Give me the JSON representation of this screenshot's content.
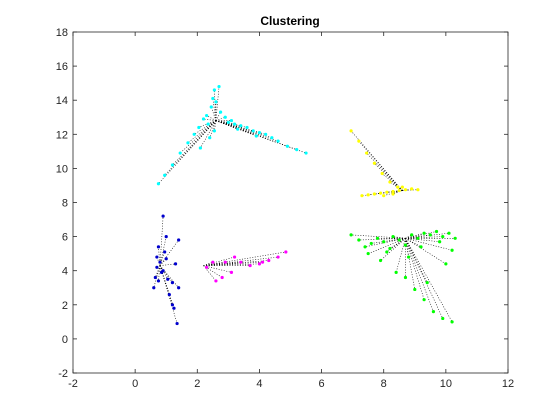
{
  "chart_data": {
    "type": "scatter",
    "title": "Clustering",
    "xlabel": "",
    "ylabel": "",
    "xlim": [
      -2,
      12
    ],
    "ylim": [
      -2,
      18
    ],
    "xticks": [
      -2,
      0,
      2,
      4,
      6,
      8,
      10,
      12
    ],
    "yticks": [
      -2,
      0,
      2,
      4,
      6,
      8,
      10,
      12,
      14,
      16,
      18
    ],
    "grid": false,
    "legend": "none",
    "link_style": {
      "color": "#000000",
      "dash": "dotted"
    },
    "series": [
      {
        "color": "#00ffff",
        "points": [
          [
            0.75,
            9.1
          ],
          [
            0.95,
            9.6
          ],
          [
            1.2,
            10.2
          ],
          [
            1.45,
            10.9
          ],
          [
            1.7,
            11.5
          ],
          [
            1.9,
            12.0
          ],
          [
            2.05,
            12.4
          ],
          [
            2.1,
            11.2
          ],
          [
            2.2,
            12.9
          ],
          [
            2.3,
            13.1
          ],
          [
            2.35,
            12.6
          ],
          [
            2.45,
            13.6
          ],
          [
            2.5,
            14.1
          ],
          [
            2.55,
            14.6
          ],
          [
            2.6,
            13.9
          ],
          [
            2.7,
            14.8
          ],
          [
            2.75,
            13.3
          ],
          [
            2.4,
            11.8
          ],
          [
            2.9,
            13.0
          ],
          [
            3.0,
            12.7
          ],
          [
            3.1,
            12.8
          ],
          [
            3.2,
            12.6
          ],
          [
            3.4,
            12.5
          ],
          [
            3.6,
            12.4
          ],
          [
            3.8,
            12.2
          ],
          [
            4.0,
            12.1
          ],
          [
            4.2,
            12.0
          ],
          [
            4.4,
            11.8
          ],
          [
            4.6,
            11.6
          ],
          [
            4.9,
            11.3
          ],
          [
            5.2,
            11.1
          ],
          [
            5.5,
            10.9
          ],
          [
            2.55,
            12.2
          ],
          [
            3.3,
            12.3
          ],
          [
            3.9,
            11.9
          ]
        ],
        "center": [
          2.6,
          12.8
        ]
      },
      {
        "color": "#ffff00",
        "points": [
          [
            6.95,
            12.2
          ],
          [
            7.2,
            11.6
          ],
          [
            7.45,
            10.9
          ],
          [
            7.7,
            10.3
          ],
          [
            7.95,
            9.7
          ],
          [
            8.2,
            9.2
          ],
          [
            8.45,
            8.9
          ],
          [
            7.3,
            8.4
          ],
          [
            7.5,
            8.45
          ],
          [
            7.7,
            8.5
          ],
          [
            7.9,
            8.55
          ],
          [
            8.1,
            8.6
          ],
          [
            8.3,
            8.65
          ],
          [
            8.5,
            8.7
          ],
          [
            8.7,
            8.75
          ],
          [
            8.9,
            8.8
          ],
          [
            9.1,
            8.75
          ],
          [
            8.6,
            8.9
          ],
          [
            8.0,
            8.4
          ],
          [
            8.3,
            8.5
          ]
        ],
        "center": [
          8.6,
          8.7
        ]
      },
      {
        "color": "#00ff00",
        "points": [
          [
            6.95,
            6.1
          ],
          [
            7.2,
            5.8
          ],
          [
            7.4,
            5.4
          ],
          [
            7.6,
            5.6
          ],
          [
            7.8,
            5.9
          ],
          [
            8.0,
            5.7
          ],
          [
            8.2,
            5.3
          ],
          [
            8.3,
            6.0
          ],
          [
            8.5,
            5.8
          ],
          [
            8.7,
            5.5
          ],
          [
            8.9,
            6.1
          ],
          [
            9.1,
            5.9
          ],
          [
            9.3,
            6.2
          ],
          [
            9.5,
            6.1
          ],
          [
            9.7,
            6.3
          ],
          [
            9.9,
            6.0
          ],
          [
            10.1,
            6.2
          ],
          [
            10.3,
            5.9
          ],
          [
            7.9,
            4.6
          ],
          [
            8.4,
            3.9
          ],
          [
            8.7,
            3.6
          ],
          [
            9.0,
            2.9
          ],
          [
            9.3,
            2.3
          ],
          [
            9.6,
            1.6
          ],
          [
            9.9,
            1.2
          ],
          [
            10.2,
            1.0
          ],
          [
            8.1,
            5.1
          ],
          [
            9.2,
            5.4
          ],
          [
            9.8,
            5.7
          ],
          [
            10.0,
            4.4
          ],
          [
            10.2,
            5.2
          ],
          [
            8.8,
            4.8
          ],
          [
            7.5,
            5.0
          ],
          [
            9.4,
            3.3
          ]
        ],
        "center": [
          8.7,
          5.9
        ]
      },
      {
        "color": "#0000cd",
        "points": [
          [
            0.6,
            3.0
          ],
          [
            0.65,
            3.6
          ],
          [
            0.7,
            4.2
          ],
          [
            0.7,
            4.8
          ],
          [
            0.75,
            5.4
          ],
          [
            0.8,
            4.5
          ],
          [
            0.85,
            3.9
          ],
          [
            0.9,
            4.0
          ],
          [
            0.95,
            5.1
          ],
          [
            1.0,
            6.0
          ],
          [
            0.9,
            7.2
          ],
          [
            1.05,
            3.5
          ],
          [
            1.1,
            2.6
          ],
          [
            1.2,
            2.0
          ],
          [
            1.25,
            1.8
          ],
          [
            1.35,
            0.9
          ],
          [
            1.4,
            3.0
          ],
          [
            1.3,
            4.4
          ],
          [
            1.4,
            5.8
          ],
          [
            1.2,
            3.3
          ],
          [
            0.75,
            3.4
          ],
          [
            1.0,
            4.7
          ]
        ],
        "center": [
          0.8,
          4.3
        ]
      },
      {
        "color": "#ff00ff",
        "points": [
          [
            2.3,
            4.2
          ],
          [
            2.6,
            3.4
          ],
          [
            2.9,
            4.5
          ],
          [
            3.1,
            3.9
          ],
          [
            3.4,
            4.5
          ],
          [
            3.7,
            4.3
          ],
          [
            4.0,
            4.4
          ],
          [
            4.3,
            4.6
          ],
          [
            4.6,
            4.8
          ],
          [
            4.85,
            5.1
          ],
          [
            2.5,
            4.5
          ],
          [
            3.2,
            4.8
          ],
          [
            2.8,
            3.6
          ],
          [
            4.1,
            4.5
          ]
        ],
        "center": [
          2.2,
          4.3
        ]
      }
    ]
  }
}
